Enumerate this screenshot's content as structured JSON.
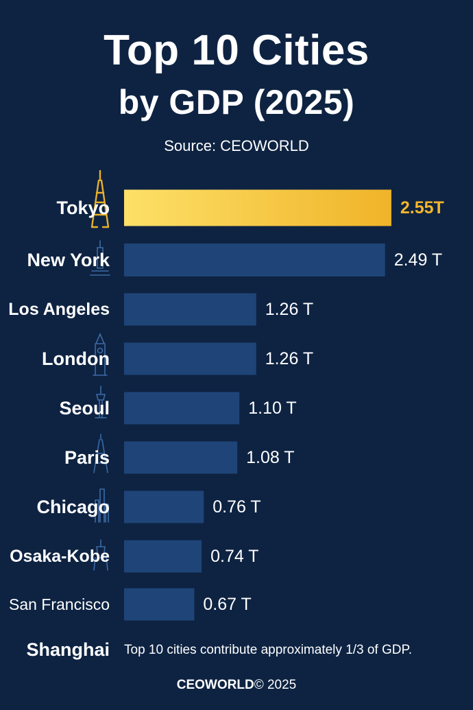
{
  "title_line1": "Top 10 Cities",
  "title_line2": "by GDP (2025)",
  "source": "Source: CEOWORLD",
  "footnote": "Top 10 cities contribute approximately 1/3 of GDP.",
  "copyright_brand": "CEOWORLD",
  "copyright_rest": "© 2025",
  "colors": {
    "background": "#0e2342",
    "bar": "#1f4478",
    "highlight_bar_start": "#fde068",
    "highlight_bar_end": "#f0b429",
    "highlight_label": "#f3b62b",
    "text": "#ffffff",
    "landmark_gold": "#e9b02a",
    "landmark_blue": "#3b6aa6"
  },
  "chart_data": {
    "type": "bar",
    "orientation": "horizontal",
    "categories": [
      "Tokyo",
      "New York",
      "Los Angeles",
      "London",
      "Seoul",
      "Paris",
      "Chicago",
      "Osaka-Kobe",
      "San Francisco",
      "Shanghai"
    ],
    "values": [
      2.55,
      2.49,
      1.26,
      1.26,
      1.1,
      1.08,
      0.76,
      0.74,
      0.67,
      null
    ],
    "value_labels": [
      "2.55T",
      "2.49 T",
      "1.26 T",
      "1.26 T",
      "1.10 T",
      "1.08 T",
      "0.76 T",
      "0.74 T",
      "0.67 T",
      ""
    ],
    "highlight_index": 0,
    "landmark_icons": [
      "tokyo-tower-icon",
      "new-york-landmark-icon",
      "",
      "big-ben-icon",
      "seoul-tower-icon",
      "eiffel-tower-icon",
      "chicago-skyline-icon",
      "osaka-landmark-icon",
      "",
      ""
    ],
    "grid": false,
    "legend": "none"
  }
}
